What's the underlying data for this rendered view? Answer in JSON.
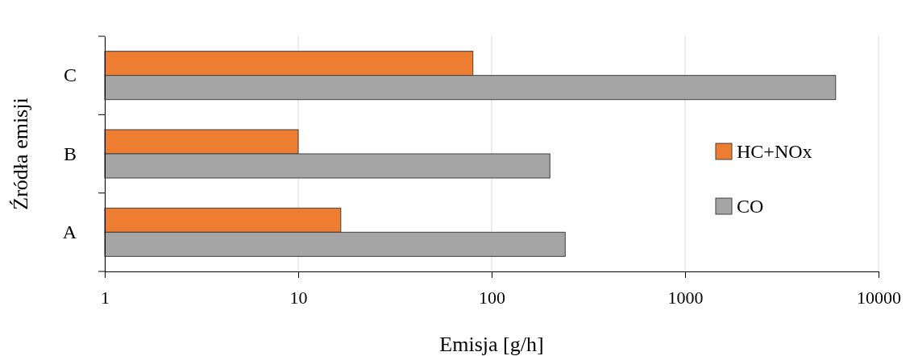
{
  "chart_data": {
    "type": "bar",
    "orientation": "horizontal",
    "log": "x",
    "xlabel": "Emisja [g/h]",
    "ylabel": "Źródła emisji",
    "categories": [
      "C",
      "B",
      "A"
    ],
    "series": [
      {
        "name": "HC+NOx",
        "color": "#ed7d31",
        "values": [
          80,
          10,
          16.6
        ]
      },
      {
        "name": "CO",
        "color": "#a5a5a5",
        "values": [
          6000,
          200,
          240
        ]
      }
    ],
    "xlim": [
      1,
      10000
    ],
    "xticks": [
      1,
      10,
      100,
      1000,
      10000
    ],
    "grid": "x",
    "legend": "right"
  }
}
